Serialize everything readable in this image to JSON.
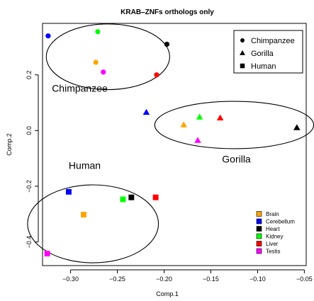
{
  "chart_data": {
    "type": "scatter",
    "title": "KRAB–ZNFs orthologs only",
    "xlabel": "Comp.1",
    "ylabel": "Comp.2",
    "xlim": [
      -0.33,
      -0.048
    ],
    "ylim": [
      -0.485,
      0.385
    ],
    "xticks": [
      -0.3,
      -0.25,
      -0.2,
      -0.15,
      -0.1,
      -0.05
    ],
    "xtick_labels": [
      "−0.30",
      "−0.25",
      "−0.20",
      "−0.15",
      "−0.10",
      "−0.05"
    ],
    "yticks": [
      -0.4,
      -0.2,
      0.0,
      0.2
    ],
    "ytick_labels": [
      "−0.4",
      "−0.2",
      "0.0",
      "0.2"
    ],
    "grid": false,
    "species": [
      {
        "name": "Chimpanzee",
        "marker": "circle"
      },
      {
        "name": "Gorilla",
        "marker": "triangle"
      },
      {
        "name": "Human",
        "marker": "square"
      }
    ],
    "tissues": [
      {
        "name": "Brain",
        "color": "#ffa500"
      },
      {
        "name": "Cerebellum",
        "color": "#0000ff"
      },
      {
        "name": "Heart",
        "color": "#000000"
      },
      {
        "name": "Kidney",
        "color": "#00ff00"
      },
      {
        "name": "Liver",
        "color": "#ff0000"
      },
      {
        "name": "Testis",
        "color": "#ff00ff"
      }
    ],
    "points": [
      {
        "species": "Chimpanzee",
        "tissue": "Cerebellum",
        "x": -0.324,
        "y": 0.34
      },
      {
        "species": "Chimpanzee",
        "tissue": "Kidney",
        "x": -0.271,
        "y": 0.355
      },
      {
        "species": "Chimpanzee",
        "tissue": "Heart",
        "x": -0.197,
        "y": 0.31
      },
      {
        "species": "Chimpanzee",
        "tissue": "Brain",
        "x": -0.273,
        "y": 0.245
      },
      {
        "species": "Chimpanzee",
        "tissue": "Testis",
        "x": -0.265,
        "y": 0.21
      },
      {
        "species": "Chimpanzee",
        "tissue": "Liver",
        "x": -0.208,
        "y": 0.2
      },
      {
        "species": "Gorilla",
        "tissue": "Cerebellum",
        "x": -0.219,
        "y": 0.065
      },
      {
        "species": "Gorilla",
        "tissue": "Brain",
        "x": -0.179,
        "y": 0.02
      },
      {
        "species": "Gorilla",
        "tissue": "Kidney",
        "x": -0.162,
        "y": 0.048
      },
      {
        "species": "Gorilla",
        "tissue": "Liver",
        "x": -0.14,
        "y": 0.045
      },
      {
        "species": "Gorilla",
        "tissue": "Testis",
        "x": -0.164,
        "y": -0.036
      },
      {
        "species": "Gorilla",
        "tissue": "Heart",
        "x": -0.058,
        "y": 0.01
      },
      {
        "species": "Human",
        "tissue": "Cerebellum",
        "x": -0.302,
        "y": -0.22
      },
      {
        "species": "Human",
        "tissue": "Brain",
        "x": -0.286,
        "y": -0.302
      },
      {
        "species": "Human",
        "tissue": "Kidney",
        "x": -0.244,
        "y": -0.247
      },
      {
        "species": "Human",
        "tissue": "Heart",
        "x": -0.235,
        "y": -0.24
      },
      {
        "species": "Human",
        "tissue": "Liver",
        "x": -0.209,
        "y": -0.24
      },
      {
        "species": "Human",
        "tissue": "Testis",
        "x": -0.325,
        "y": -0.442
      }
    ],
    "groups": [
      {
        "label": "Chimpanzee",
        "cx": -0.26,
        "cy": 0.265,
        "rx": 0.066,
        "ry": 0.118,
        "label_x": -0.32,
        "label_y": 0.14
      },
      {
        "label": "Gorilla",
        "cx": -0.125,
        "cy": 0.02,
        "rx": 0.085,
        "ry": 0.085,
        "label_x": -0.138,
        "label_y": -0.115
      },
      {
        "label": "Human",
        "cx": -0.276,
        "cy": -0.335,
        "rx": 0.07,
        "ry": 0.14,
        "label_x": -0.302,
        "label_y": -0.138
      }
    ],
    "species_legend_position": "top-right",
    "tissue_legend_position": "bottom-right"
  }
}
